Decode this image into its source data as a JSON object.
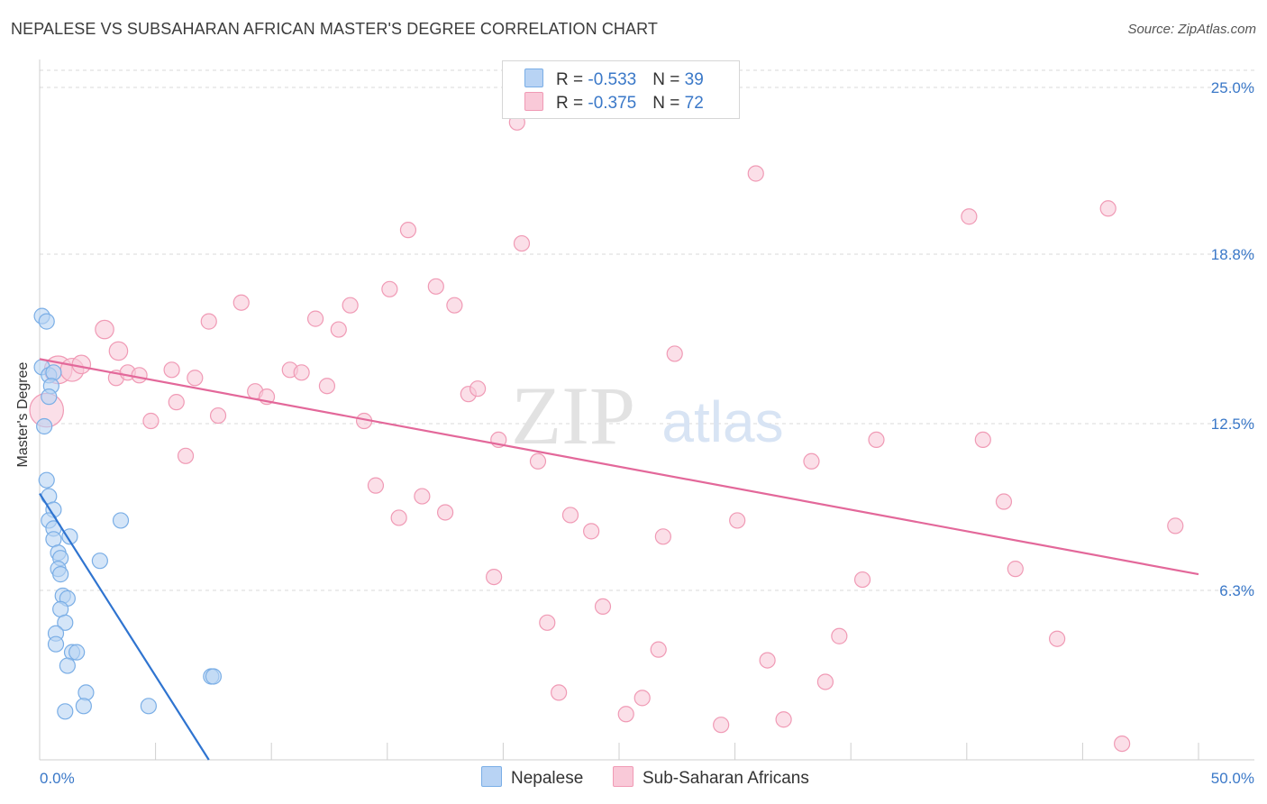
{
  "title": "NEPALESE VS SUBSAHARAN AFRICAN MASTER'S DEGREE CORRELATION CHART",
  "source": "Source: ZipAtlas.com",
  "watermark": {
    "zip": "ZIP",
    "atlas": "atlas"
  },
  "colors": {
    "blue_fill": "#b8d3f4",
    "blue_stroke": "#7aaee6",
    "blue_line": "#2f74d0",
    "pink_fill": "#f9c9d8",
    "pink_stroke": "#f09ab5",
    "pink_line": "#e3689a",
    "value_text": "#3a78c8",
    "grid": "#d8d8d8"
  },
  "legend_top": [
    {
      "r_label": "R = ",
      "r_value": "-0.533",
      "n_label": "N = ",
      "n_value": "39",
      "series": "Nepalese"
    },
    {
      "r_label": "R = ",
      "r_value": "-0.375",
      "n_label": "N = ",
      "n_value": "72",
      "series": "Sub-Saharan Africans"
    }
  ],
  "chart_data": {
    "type": "scatter",
    "title": "NEPALESE VS SUBSAHARAN AFRICAN MASTER'S DEGREE CORRELATION CHART",
    "xlabel": "",
    "ylabel": "Master's Degree",
    "xlim": [
      0,
      50
    ],
    "ylim": [
      0,
      25.0
    ],
    "x_tick_labels": [
      "0.0%",
      "50.0%"
    ],
    "y_ticks": [
      6.3,
      12.5,
      18.8,
      25.0
    ],
    "y_tick_labels": [
      "6.3%",
      "12.5%",
      "18.8%",
      "25.0%"
    ],
    "grid": true,
    "legend_position": "bottom-center",
    "series": [
      {
        "name": "Nepalese",
        "color": "#b8d3f4",
        "trendline": {
          "x": [
            0.0,
            7.3
          ],
          "y": [
            9.9,
            0.0
          ]
        },
        "points": [
          {
            "x": 0.1,
            "y": 16.5,
            "s": 1
          },
          {
            "x": 0.3,
            "y": 16.3,
            "s": 1
          },
          {
            "x": 0.1,
            "y": 14.6,
            "s": 1
          },
          {
            "x": 0.4,
            "y": 14.3,
            "s": 1
          },
          {
            "x": 0.6,
            "y": 14.4,
            "s": 1
          },
          {
            "x": 0.5,
            "y": 13.9,
            "s": 1
          },
          {
            "x": 0.4,
            "y": 13.5,
            "s": 1
          },
          {
            "x": 0.2,
            "y": 12.4,
            "s": 1
          },
          {
            "x": 0.3,
            "y": 10.4,
            "s": 1
          },
          {
            "x": 0.4,
            "y": 9.8,
            "s": 1
          },
          {
            "x": 0.6,
            "y": 9.3,
            "s": 1
          },
          {
            "x": 0.4,
            "y": 8.9,
            "s": 1
          },
          {
            "x": 0.6,
            "y": 8.6,
            "s": 1
          },
          {
            "x": 0.6,
            "y": 8.2,
            "s": 1
          },
          {
            "x": 1.3,
            "y": 8.3,
            "s": 1
          },
          {
            "x": 0.8,
            "y": 7.7,
            "s": 1
          },
          {
            "x": 0.9,
            "y": 7.5,
            "s": 1
          },
          {
            "x": 0.8,
            "y": 7.1,
            "s": 1
          },
          {
            "x": 0.9,
            "y": 6.9,
            "s": 1
          },
          {
            "x": 2.6,
            "y": 7.4,
            "s": 1
          },
          {
            "x": 1.0,
            "y": 6.1,
            "s": 1
          },
          {
            "x": 1.2,
            "y": 6.0,
            "s": 1
          },
          {
            "x": 0.9,
            "y": 5.6,
            "s": 1
          },
          {
            "x": 1.1,
            "y": 5.1,
            "s": 1
          },
          {
            "x": 0.7,
            "y": 4.7,
            "s": 1
          },
          {
            "x": 0.7,
            "y": 4.3,
            "s": 1
          },
          {
            "x": 1.4,
            "y": 4.0,
            "s": 1
          },
          {
            "x": 1.6,
            "y": 4.0,
            "s": 1
          },
          {
            "x": 1.2,
            "y": 3.5,
            "s": 1
          },
          {
            "x": 3.5,
            "y": 8.9,
            "s": 1
          },
          {
            "x": 7.4,
            "y": 3.1,
            "s": 1
          },
          {
            "x": 7.5,
            "y": 3.1,
            "s": 1
          },
          {
            "x": 2.0,
            "y": 2.5,
            "s": 1
          },
          {
            "x": 1.9,
            "y": 2.0,
            "s": 1
          },
          {
            "x": 1.1,
            "y": 1.8,
            "s": 1
          },
          {
            "x": 4.7,
            "y": 2.0,
            "s": 1
          }
        ]
      },
      {
        "name": "Sub-Saharan Africans",
        "color": "#f9c9d8",
        "trendline": {
          "x": [
            0.0,
            50.0
          ],
          "y": [
            14.9,
            6.9
          ]
        },
        "points": [
          {
            "x": 0.3,
            "y": 13.0,
            "s": 2.2
          },
          {
            "x": 0.8,
            "y": 14.5,
            "s": 1.8
          },
          {
            "x": 1.4,
            "y": 14.5,
            "s": 1.5
          },
          {
            "x": 1.8,
            "y": 14.7,
            "s": 1.2
          },
          {
            "x": 2.8,
            "y": 16.0,
            "s": 1.2
          },
          {
            "x": 3.4,
            "y": 15.2,
            "s": 1.2
          },
          {
            "x": 3.3,
            "y": 14.2,
            "s": 1
          },
          {
            "x": 3.8,
            "y": 14.4,
            "s": 1
          },
          {
            "x": 4.3,
            "y": 14.3,
            "s": 1
          },
          {
            "x": 5.7,
            "y": 14.5,
            "s": 1
          },
          {
            "x": 6.7,
            "y": 14.2,
            "s": 1
          },
          {
            "x": 5.9,
            "y": 13.3,
            "s": 1
          },
          {
            "x": 4.8,
            "y": 12.6,
            "s": 1
          },
          {
            "x": 6.3,
            "y": 11.3,
            "s": 1
          },
          {
            "x": 7.3,
            "y": 16.3,
            "s": 1
          },
          {
            "x": 8.7,
            "y": 17.0,
            "s": 1
          },
          {
            "x": 7.7,
            "y": 12.8,
            "s": 1
          },
          {
            "x": 9.3,
            "y": 13.7,
            "s": 1
          },
          {
            "x": 9.8,
            "y": 13.5,
            "s": 1
          },
          {
            "x": 10.8,
            "y": 14.5,
            "s": 1
          },
          {
            "x": 11.3,
            "y": 14.4,
            "s": 1
          },
          {
            "x": 11.9,
            "y": 16.4,
            "s": 1
          },
          {
            "x": 12.4,
            "y": 13.9,
            "s": 1
          },
          {
            "x": 12.9,
            "y": 16.0,
            "s": 1
          },
          {
            "x": 13.4,
            "y": 16.9,
            "s": 1
          },
          {
            "x": 14.0,
            "y": 12.6,
            "s": 1
          },
          {
            "x": 14.5,
            "y": 10.2,
            "s": 1
          },
          {
            "x": 15.1,
            "y": 17.5,
            "s": 1
          },
          {
            "x": 15.5,
            "y": 9.0,
            "s": 1
          },
          {
            "x": 15.9,
            "y": 19.7,
            "s": 1
          },
          {
            "x": 16.5,
            "y": 9.8,
            "s": 1
          },
          {
            "x": 17.1,
            "y": 17.6,
            "s": 1
          },
          {
            "x": 17.5,
            "y": 9.2,
            "s": 1
          },
          {
            "x": 17.9,
            "y": 16.9,
            "s": 1
          },
          {
            "x": 18.5,
            "y": 13.6,
            "s": 1
          },
          {
            "x": 18.9,
            "y": 13.8,
            "s": 1
          },
          {
            "x": 19.6,
            "y": 6.8,
            "s": 1
          },
          {
            "x": 19.8,
            "y": 11.9,
            "s": 1
          },
          {
            "x": 20.6,
            "y": 23.7,
            "s": 1
          },
          {
            "x": 20.8,
            "y": 19.2,
            "s": 1
          },
          {
            "x": 21.5,
            "y": 11.1,
            "s": 1
          },
          {
            "x": 21.9,
            "y": 5.1,
            "s": 1
          },
          {
            "x": 22.4,
            "y": 2.5,
            "s": 1
          },
          {
            "x": 22.9,
            "y": 9.1,
            "s": 1
          },
          {
            "x": 23.8,
            "y": 8.5,
            "s": 1
          },
          {
            "x": 24.3,
            "y": 5.7,
            "s": 1
          },
          {
            "x": 25.3,
            "y": 1.7,
            "s": 1
          },
          {
            "x": 26.0,
            "y": 2.3,
            "s": 1
          },
          {
            "x": 26.7,
            "y": 4.1,
            "s": 1
          },
          {
            "x": 26.9,
            "y": 8.3,
            "s": 1
          },
          {
            "x": 27.4,
            "y": 15.1,
            "s": 1
          },
          {
            "x": 29.4,
            "y": 1.3,
            "s": 1
          },
          {
            "x": 30.1,
            "y": 8.9,
            "s": 1
          },
          {
            "x": 30.9,
            "y": 21.8,
            "s": 1
          },
          {
            "x": 31.4,
            "y": 3.7,
            "s": 1
          },
          {
            "x": 32.1,
            "y": 1.5,
            "s": 1
          },
          {
            "x": 33.3,
            "y": 11.1,
            "s": 1
          },
          {
            "x": 33.9,
            "y": 2.9,
            "s": 1
          },
          {
            "x": 34.5,
            "y": 4.6,
            "s": 1
          },
          {
            "x": 35.5,
            "y": 6.7,
            "s": 1
          },
          {
            "x": 36.1,
            "y": 11.9,
            "s": 1
          },
          {
            "x": 40.1,
            "y": 20.2,
            "s": 1
          },
          {
            "x": 40.7,
            "y": 11.9,
            "s": 1
          },
          {
            "x": 41.6,
            "y": 9.6,
            "s": 1
          },
          {
            "x": 42.1,
            "y": 7.1,
            "s": 1
          },
          {
            "x": 43.9,
            "y": 4.5,
            "s": 1
          },
          {
            "x": 46.1,
            "y": 20.5,
            "s": 1
          },
          {
            "x": 46.7,
            "y": 0.6,
            "s": 1
          },
          {
            "x": 49.0,
            "y": 8.7,
            "s": 1
          }
        ]
      }
    ]
  }
}
